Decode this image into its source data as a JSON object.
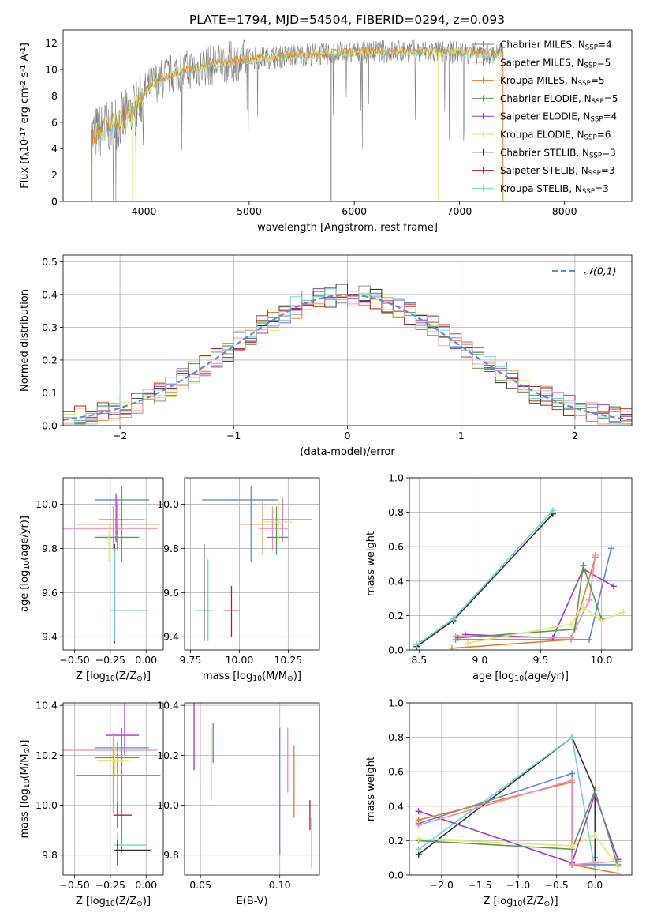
{
  "figure": {
    "title": "PLATE=1794, MJD=54504, FIBERID=0294, z=0.093",
    "legend": [
      {
        "label": "Chabrier MILES, N$_{SSP}$=4",
        "color": "#7f7f7f"
      },
      {
        "label": "Salpeter MILES, N$_{SSP}$=5",
        "color": "#7f7f7f"
      },
      {
        "label": "Kroupa MILES, N$_{SSP}$=5",
        "color": "#e0802e"
      },
      {
        "label": "Chabrier ELODIE, N$_{SSP}$=5",
        "color": "#5a9a5a"
      },
      {
        "label": "Salpeter ELODIE, N$_{SSP}$=4",
        "color": "#a036c8"
      },
      {
        "label": "Kroupa ELODIE, N$_{SSP}$=6",
        "color": "#e6e66a"
      },
      {
        "label": "Chabrier STELIB, N$_{SSP}$=3",
        "color": "#333333"
      },
      {
        "label": "Salpeter STELIB, N$_{SSP}$=3",
        "color": "#b22222"
      },
      {
        "label": "Kroupa STELIB, N$_{SSP}$=3",
        "color": "#6fd3d8"
      }
    ]
  },
  "chart_data": [
    {
      "id": "spectrum",
      "type": "line",
      "xlabel": "wavelength [Angstrom, rest frame]",
      "ylabel": "Flux [f$_\\lambda$10$^{-17}$ erg cm$^{-2}$ s$^{-1}$ A$^{-1}$]",
      "xlim": [
        3230,
        8640
      ],
      "ylim": [
        0,
        13
      ],
      "xticks": [
        4000,
        5000,
        6000,
        7000,
        8000
      ],
      "yticks": [
        0,
        2,
        4,
        6,
        8,
        10,
        12
      ],
      "grid": false,
      "legend_position": "right",
      "continuum": {
        "x": [
          3500,
          3600,
          3700,
          3800,
          3900,
          4000,
          4100,
          4300,
          4600,
          5000,
          5500,
          6000,
          6500,
          7000,
          7420
        ],
        "y": [
          5.0,
          5.4,
          5.9,
          6.2,
          6.8,
          8.2,
          9.0,
          9.8,
          10.3,
          10.8,
          11.1,
          11.3,
          11.4,
          11.3,
          11.2
        ]
      },
      "observed_color": "#7f7f7f",
      "model_colors": [
        "#6fd3d8",
        "#e6e66a",
        "#e0802e"
      ]
    },
    {
      "id": "residuals",
      "type": "histogram",
      "xlabel": "(data-model)/error",
      "ylabel": "Normed distribution",
      "xlim": [
        -2.5,
        2.5
      ],
      "ylim": [
        0,
        0.52
      ],
      "xticks": [
        -2,
        -1,
        0,
        1,
        2
      ],
      "yticks": [
        0.0,
        0.1,
        0.2,
        0.3,
        0.4,
        0.5
      ],
      "grid": true,
      "legend_position": "top-right",
      "reference": {
        "label": "$\\mathcal{N}(0,1)$",
        "color": "#5b8bd9"
      },
      "series_colors": [
        "#7f7f7f",
        "#e0802e",
        "#5a9a5a",
        "#a036c8",
        "#e6e66a",
        "#333333",
        "#b22222",
        "#6fd3d8",
        "#f08cb8"
      ]
    },
    {
      "id": "age-vs-Z",
      "type": "errorbar",
      "xlabel": "Z [log$_{10}$(Z/Z$_\\odot$)]",
      "ylabel": "age  [log$_{10}$(age/yr)]",
      "xlim": [
        -0.58,
        0.12
      ],
      "ylim": [
        9.34,
        10.12
      ],
      "xticks": [
        -0.5,
        -0.25,
        0.0
      ],
      "yticks": [
        9.4,
        9.6,
        9.8,
        10.0
      ],
      "grid": true,
      "points": [
        {
          "x": -0.17,
          "y": 10.02,
          "xerr": [
            0.19,
            0.19
          ],
          "yerr": [
            0.28,
            0.06
          ],
          "color": "#5b8bd9"
        },
        {
          "x": -0.21,
          "y": 9.93,
          "xerr": [
            0.12,
            0.2
          ],
          "yerr": [
            0.1,
            0.12
          ],
          "color": "#a036c8"
        },
        {
          "x": -0.2,
          "y": 9.91,
          "xerr": [
            0.29,
            0.3
          ],
          "yerr": [
            0.12,
            0.1
          ],
          "color": "#e0802e"
        },
        {
          "x": -0.23,
          "y": 9.89,
          "xerr": [
            0.35,
            0.31
          ],
          "yerr": [
            0.1,
            0.1
          ],
          "color": "#f08cb8"
        },
        {
          "x": -0.2,
          "y": 9.85,
          "xerr": [
            0.16,
            0.15
          ],
          "yerr": [
            0.05,
            0.06
          ],
          "color": "#5a9a5a"
        },
        {
          "x": -0.26,
          "y": 9.86,
          "xerr": [
            0.07,
            0.07
          ],
          "yerr": [
            0.12,
            0.05
          ],
          "color": "#e6e66a"
        },
        {
          "x": -0.22,
          "y": 9.52,
          "xerr": [
            0.03,
            0.23
          ],
          "yerr": [
            0.15,
            0.3
          ],
          "color": "#333333"
        },
        {
          "x": -0.22,
          "y": 9.52,
          "xerr": [
            0.03,
            0.23
          ],
          "yerr": [
            0.14,
            0.28
          ],
          "color": "#6fd3d8"
        }
      ]
    },
    {
      "id": "age-vs-mass",
      "type": "errorbar",
      "xlabel": "mass [log$_{10}$(M/M$_\\odot$)]",
      "ylabel": "",
      "xlim": [
        9.72,
        10.41
      ],
      "ylim": [
        9.34,
        10.12
      ],
      "xticks": [
        9.75,
        10.0,
        10.25
      ],
      "yticks": [
        9.4,
        9.6,
        9.8,
        10.0
      ],
      "grid": true,
      "points": [
        {
          "x": 10.06,
          "y": 10.02,
          "xerr": [
            0.25,
            0.14
          ],
          "yerr": [
            0.28,
            0.06
          ],
          "color": "#5b8bd9"
        },
        {
          "x": 10.22,
          "y": 9.93,
          "xerr": [
            0.1,
            0.15
          ],
          "yerr": [
            0.1,
            0.1
          ],
          "color": "#a036c8"
        },
        {
          "x": 10.12,
          "y": 9.91,
          "xerr": [
            0.11,
            0.1
          ],
          "yerr": [
            0.14,
            0.1
          ],
          "color": "#e0802e"
        },
        {
          "x": 10.17,
          "y": 9.89,
          "xerr": [
            0.07,
            0.08
          ],
          "yerr": [
            0.1,
            0.1
          ],
          "color": "#f08cb8"
        },
        {
          "x": 10.19,
          "y": 9.85,
          "xerr": [
            0.05,
            0.06
          ],
          "yerr": [
            0.08,
            0.14
          ],
          "color": "#5a9a5a"
        },
        {
          "x": 10.2,
          "y": 9.92,
          "xerr": [
            0.08,
            0.07
          ],
          "yerr": [
            0.1,
            0.1
          ],
          "color": "#e6e66a"
        },
        {
          "x": 9.82,
          "y": 9.52,
          "xerr": [
            0.04,
            0.04
          ],
          "yerr": [
            0.14,
            0.3
          ],
          "color": "#333333"
        },
        {
          "x": 9.96,
          "y": 9.52,
          "xerr": [
            0.04,
            0.04
          ],
          "yerr": [
            0.12,
            0.11
          ],
          "color": "#b22222"
        },
        {
          "x": 9.84,
          "y": 9.52,
          "xerr": [
            0.07,
            0.03
          ],
          "yerr": [
            0.14,
            0.23
          ],
          "color": "#6fd3d8"
        }
      ]
    },
    {
      "id": "weight-vs-age",
      "type": "line",
      "xlabel": "age  [log$_{10}$(age/yr)]",
      "ylabel": "mass weight",
      "xlim": [
        8.42,
        10.25
      ],
      "ylim": [
        0,
        1.0
      ],
      "xticks": [
        8.5,
        9.0,
        9.5,
        10.0
      ],
      "yticks": [
        0.0,
        0.2,
        0.4,
        0.6,
        0.8,
        1.0
      ],
      "grid": true,
      "series": [
        {
          "color": "#333333",
          "x": [
            8.48,
            8.78,
            9.6
          ],
          "y": [
            0.02,
            0.17,
            0.79
          ]
        },
        {
          "color": "#6fd3d8",
          "x": [
            8.48,
            8.78,
            9.6
          ],
          "y": [
            0.03,
            0.18,
            0.81
          ]
        },
        {
          "color": "#5b8bd9",
          "x": [
            8.8,
            9.9,
            10.08
          ],
          "y": [
            0.06,
            0.06,
            0.59
          ]
        },
        {
          "color": "#a036c8",
          "x": [
            8.88,
            9.6,
            9.85,
            10.1
          ],
          "y": [
            0.09,
            0.07,
            0.47,
            0.37
          ]
        },
        {
          "color": "#e0802e",
          "x": [
            8.77,
            9.75,
            9.95
          ],
          "y": [
            0.01,
            0.06,
            0.54
          ]
        },
        {
          "color": "#f08cb8",
          "x": [
            8.8,
            9.75,
            9.9,
            9.95
          ],
          "y": [
            0.08,
            0.07,
            0.29,
            0.55
          ]
        },
        {
          "color": "#5a9a5a",
          "x": [
            8.82,
            9.78,
            9.85,
            10.0
          ],
          "y": [
            0.07,
            0.12,
            0.49,
            0.18
          ]
        },
        {
          "color": "#e6e66a",
          "x": [
            8.9,
            9.75,
            9.85,
            10.0,
            10.18
          ],
          "y": [
            0.04,
            0.15,
            0.25,
            0.17,
            0.22
          ]
        }
      ]
    },
    {
      "id": "mass-vs-Z",
      "type": "errorbar",
      "xlabel": "Z [log$_{10}$(Z/Z$_\\odot$)]",
      "ylabel": "mass [log$_{10}$(M/M$_\\odot$)]",
      "xlim": [
        -0.58,
        0.12
      ],
      "ylim": [
        9.72,
        10.41
      ],
      "xticks": [
        -0.5,
        -0.25,
        0.0
      ],
      "yticks": [
        9.8,
        10.0,
        10.2,
        10.4
      ],
      "grid": true,
      "points": [
        {
          "x": -0.15,
          "y": 10.28,
          "xerr": [
            0.13,
            0.1
          ],
          "yerr": [
            0.08,
            0.13
          ],
          "color": "#a036c8"
        },
        {
          "x": -0.17,
          "y": 10.23,
          "xerr": [
            0.19,
            0.19
          ],
          "yerr": [
            0.42,
            0.08
          ],
          "color": "#5b8bd9"
        },
        {
          "x": -0.23,
          "y": 10.22,
          "xerr": [
            0.35,
            0.31
          ],
          "yerr": [
            0.25,
            0.07
          ],
          "color": "#f08cb8"
        },
        {
          "x": -0.2,
          "y": 10.19,
          "xerr": [
            0.16,
            0.15
          ],
          "yerr": [
            0.06,
            0.06
          ],
          "color": "#5a9a5a"
        },
        {
          "x": -0.22,
          "y": 10.18,
          "xerr": [
            0.12,
            0.1
          ],
          "yerr": [
            0.06,
            0.06
          ],
          "color": "#e6e66a"
        },
        {
          "x": -0.2,
          "y": 10.12,
          "xerr": [
            0.29,
            0.3
          ],
          "yerr": [
            0.16,
            0.05
          ],
          "color": "#e0802e"
        },
        {
          "x": -0.2,
          "y": 9.96,
          "xerr": [
            0.03,
            0.1
          ],
          "yerr": [
            0.05,
            0.05
          ],
          "color": "#b22222"
        },
        {
          "x": -0.2,
          "y": 9.84,
          "xerr": [
            0.02,
            0.2
          ],
          "yerr": [
            0.08,
            0.05
          ],
          "color": "#6fd3d8"
        },
        {
          "x": -0.2,
          "y": 9.82,
          "xerr": [
            0.02,
            0.23
          ],
          "yerr": [
            0.06,
            0.04
          ],
          "color": "#333333"
        }
      ]
    },
    {
      "id": "mass-vs-EBV",
      "type": "errorbar",
      "xlabel": "E(B-V)",
      "ylabel": "",
      "xlim": [
        0.04,
        0.125
      ],
      "ylim": [
        9.72,
        10.41
      ],
      "xticks": [
        0.05,
        0.1
      ],
      "yticks": [
        9.8,
        10.0,
        10.2,
        10.4
      ],
      "grid": true,
      "points": [
        {
          "x": 0.046,
          "y": 10.28,
          "xerr": [
            0,
            0
          ],
          "yerr": [
            0.14,
            0.13
          ],
          "color": "#a036c8"
        },
        {
          "x": 0.057,
          "y": 10.17,
          "xerr": [
            0,
            0
          ],
          "yerr": [
            0.15,
            0.14
          ],
          "color": "#e6e66a"
        },
        {
          "x": 0.058,
          "y": 10.23,
          "xerr": [
            0,
            0
          ],
          "yerr": [
            0.06,
            0.1
          ],
          "color": "#5a9a5a"
        },
        {
          "x": 0.1,
          "y": 10.06,
          "xerr": [
            0,
            0
          ],
          "yerr": [
            0.26,
            0.25
          ],
          "color": "#5b8bd9"
        },
        {
          "x": 0.105,
          "y": 10.22,
          "xerr": [
            0,
            0
          ],
          "yerr": [
            0.17,
            0.09
          ],
          "color": "#f08cb8"
        },
        {
          "x": 0.109,
          "y": 10.1,
          "xerr": [
            0,
            0
          ],
          "yerr": [
            0.15,
            0.14
          ],
          "color": "#e0802e"
        },
        {
          "x": 0.119,
          "y": 9.96,
          "xerr": [
            0,
            0
          ],
          "yerr": [
            0.06,
            0.06
          ],
          "color": "#b22222"
        },
        {
          "x": 0.12,
          "y": 9.85,
          "xerr": [
            0,
            0
          ],
          "yerr": [
            0.1,
            0.1
          ],
          "color": "#6fd3d8"
        }
      ]
    },
    {
      "id": "weight-vs-Z",
      "type": "line",
      "xlabel": "Z [log$_{10}$(Z/Z$_\\odot$)]",
      "ylabel": "mass weight",
      "xlim": [
        -2.42,
        0.48
      ],
      "ylim": [
        0,
        1.0
      ],
      "xticks": [
        -2.0,
        -1.5,
        -1.0,
        -0.5,
        0.0
      ],
      "yticks": [
        0.0,
        0.2,
        0.4,
        0.6,
        0.8,
        1.0
      ],
      "grid": true,
      "series": [
        {
          "color": "#333333",
          "x": [
            -2.3,
            -0.3,
            0.0,
            0.0
          ],
          "y": [
            0.12,
            0.8,
            0.49,
            0.1
          ]
        },
        {
          "color": "#6fd3d8",
          "x": [
            -2.3,
            -0.3,
            0.0
          ],
          "y": [
            0.15,
            0.8,
            0.03
          ]
        },
        {
          "color": "#5b8bd9",
          "x": [
            -2.3,
            -0.3,
            -0.3,
            0.3
          ],
          "y": [
            0.3,
            0.59,
            0.06,
            0.06
          ]
        },
        {
          "color": "#a036c8",
          "x": [
            -2.3,
            -0.3,
            0.0,
            0.3
          ],
          "y": [
            0.37,
            0.07,
            0.47,
            0.09
          ]
        },
        {
          "color": "#e0802e",
          "x": [
            -2.3,
            -0.3,
            -0.3,
            0.3
          ],
          "y": [
            0.32,
            0.54,
            0.06,
            0.01
          ]
        },
        {
          "color": "#f08cb8",
          "x": [
            -2.3,
            -0.3,
            -0.3,
            0.3
          ],
          "y": [
            0.29,
            0.55,
            0.06,
            0.08
          ]
        },
        {
          "color": "#5a9a5a",
          "x": [
            -2.3,
            -0.3,
            0.0,
            0.3
          ],
          "y": [
            0.2,
            0.15,
            0.49,
            0.05
          ]
        },
        {
          "color": "#e6e66a",
          "x": [
            -2.3,
            -0.3,
            0.0,
            0.3
          ],
          "y": [
            0.21,
            0.17,
            0.23,
            0.05
          ]
        }
      ]
    }
  ]
}
